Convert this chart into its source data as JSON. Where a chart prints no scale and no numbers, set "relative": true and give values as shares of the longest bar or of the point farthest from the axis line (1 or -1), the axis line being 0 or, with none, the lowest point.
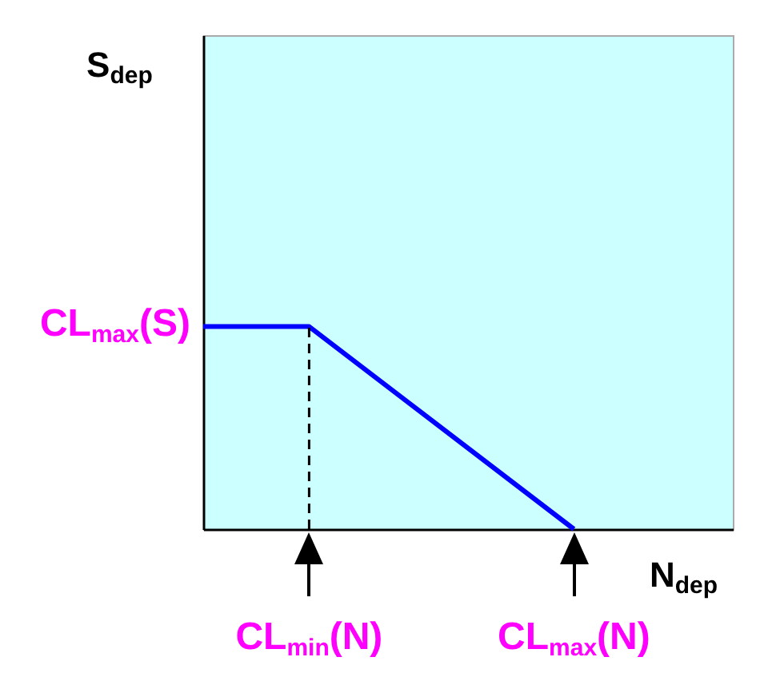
{
  "chart_data": {
    "type": "line",
    "xlabel": "N$_{dep}$",
    "relative": true,
    "categories": [
      null,
      null,
      "CL$_{min}$(N)",
      null,
      null,
      null,
      null,
      "CL$_{max}$(N)",
      null,
      null,
      null
    ],
    "series": [
      {
        "color": "#0000ff",
        "values": [
          1,
          null,
          1,
          null,
          null,
          null,
          null,
          0,
          null,
          null,
          null
        ],
        "line_style": "solid"
      }
    ],
    "ref_lines": [
      {
        "axis": "x",
        "value": "CL$_{min}$(N)",
        "color": "#000000",
        "line_style": "dashed"
      }
    ],
    "annotations": [
      "S$_{dep}$",
      "CL$_{max}$(S)"
    ]
  }
}
